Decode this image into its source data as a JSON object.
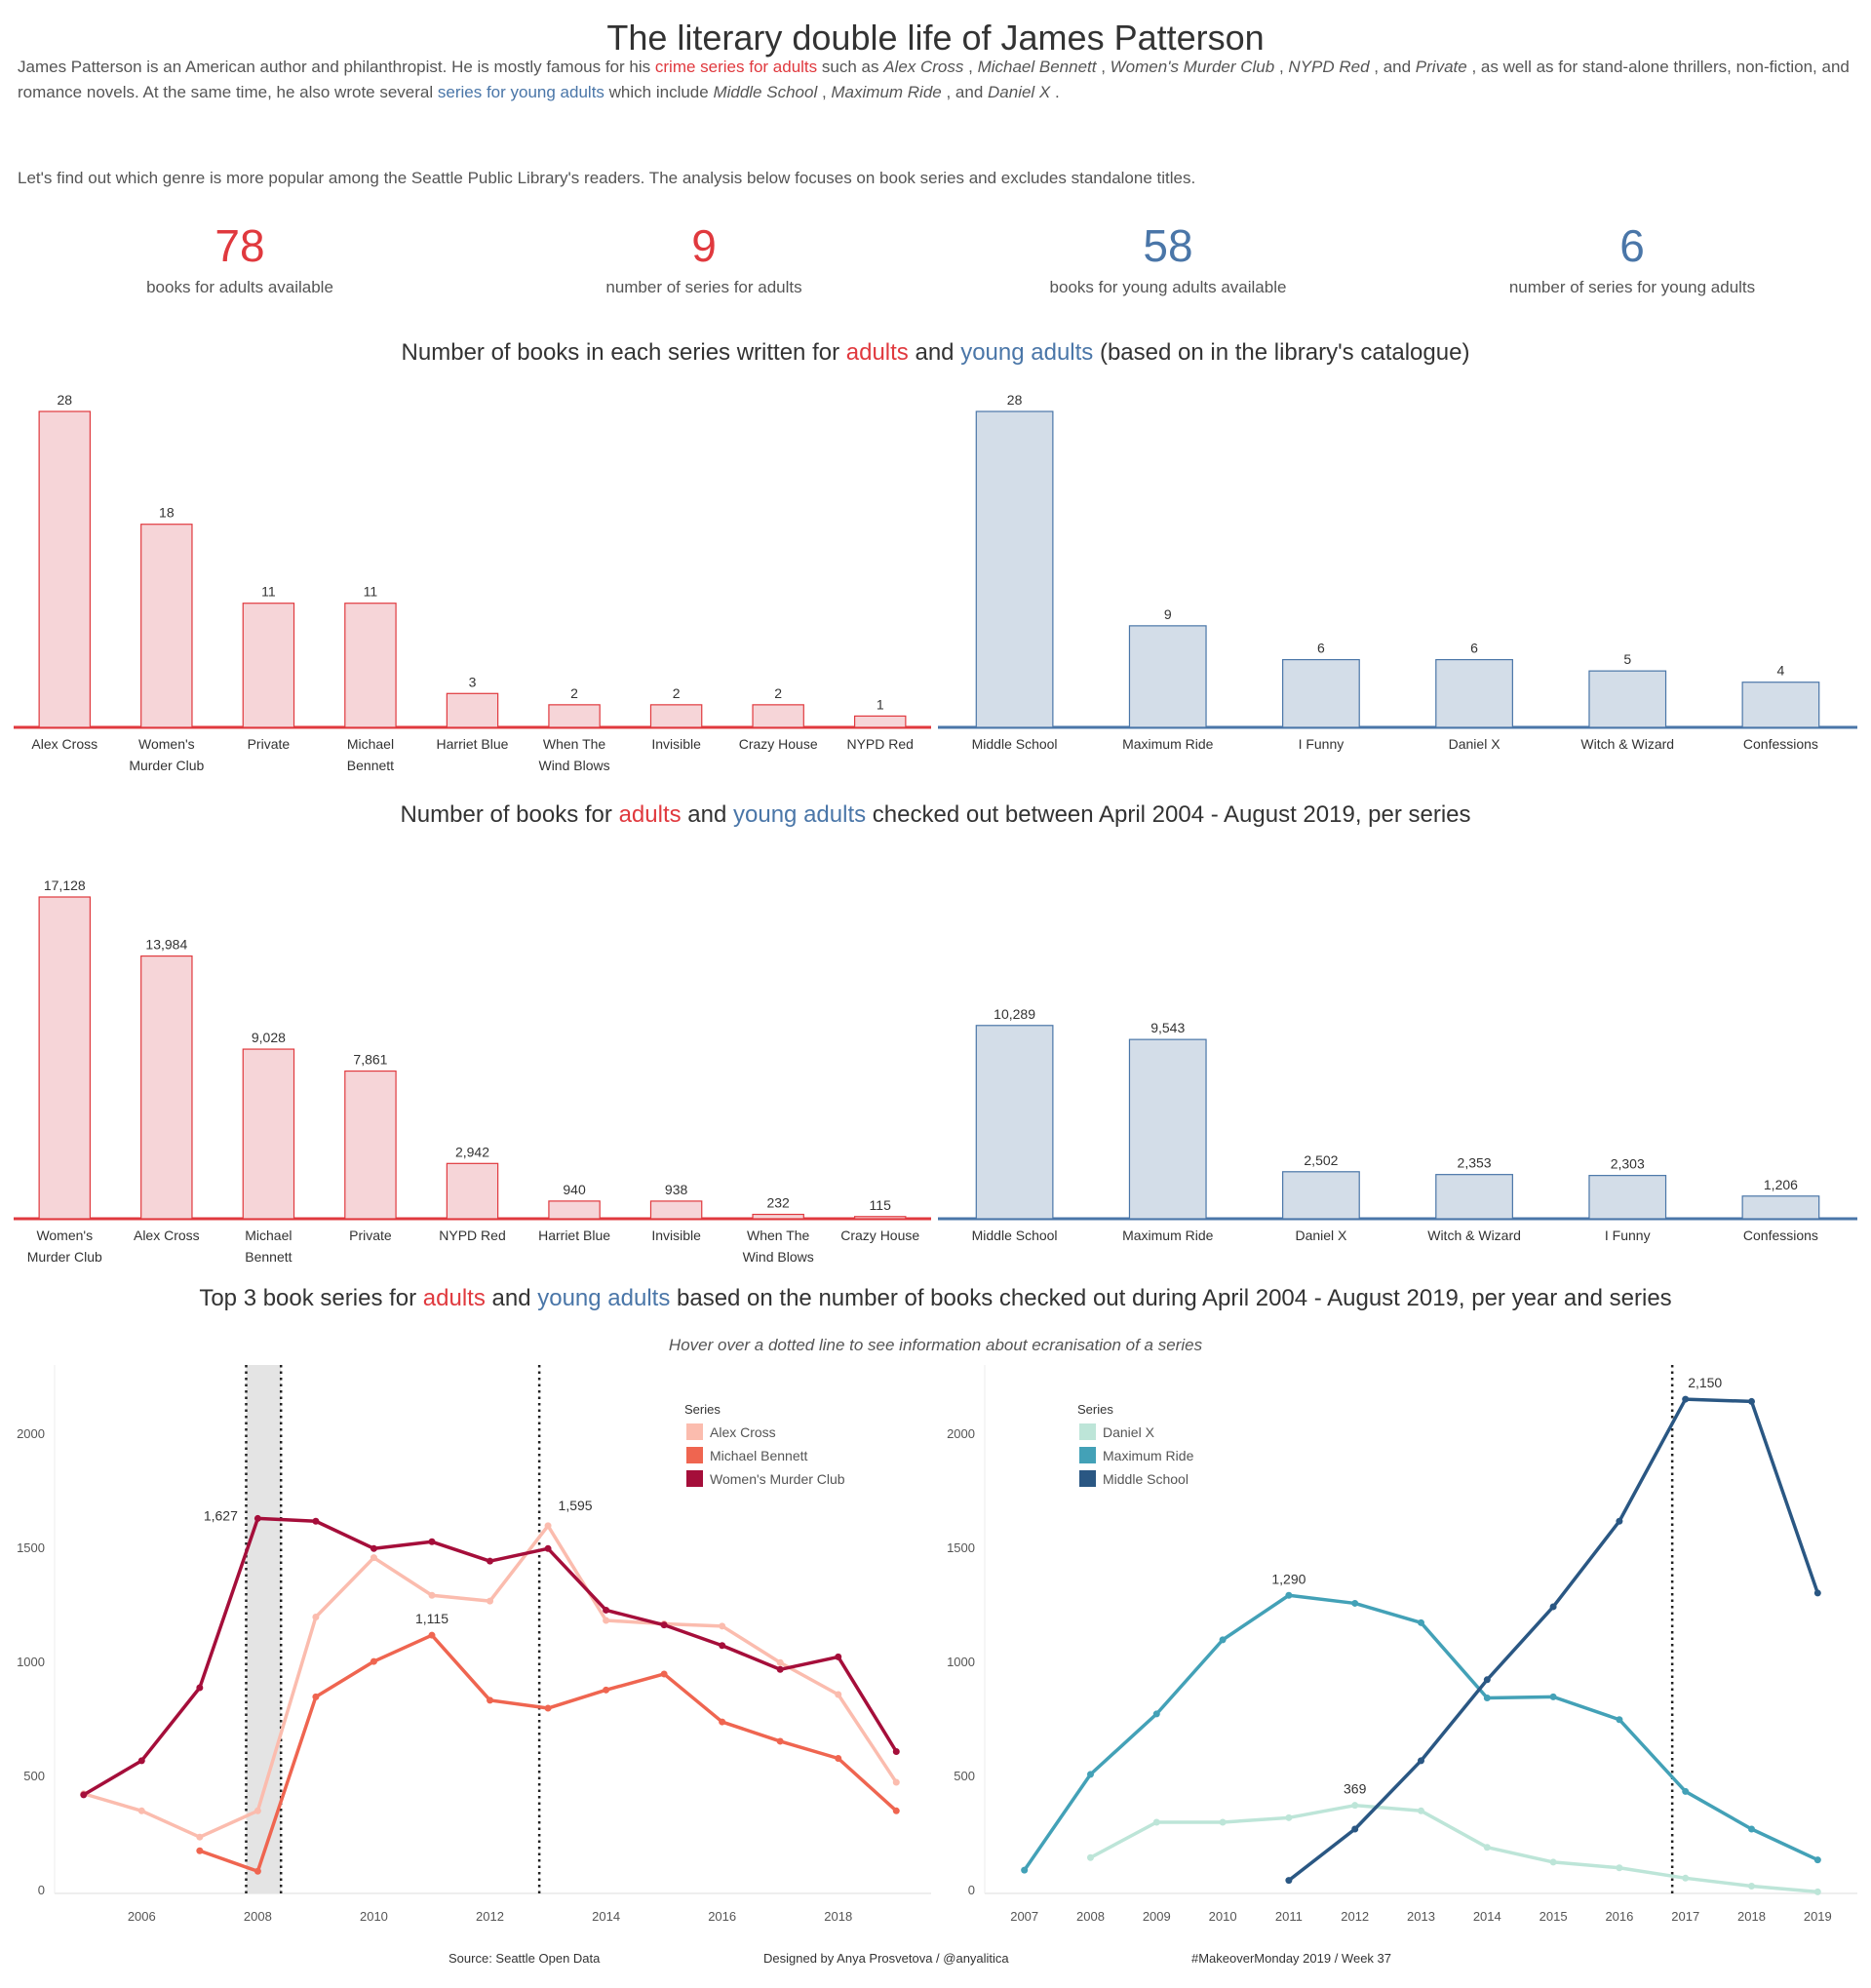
{
  "title": "The literary double life of James Patterson",
  "intro": {
    "p1_a": "James Patterson is an American author and philanthropist. He is mostly famous for his ",
    "p1_red": "crime series for adults",
    "p1_b": " such as ",
    "p1_series_adult": [
      "Alex Cross",
      "Michael Bennett",
      "Women's Murder Club",
      "NYPD Red",
      "Private"
    ],
    "p1_c": ", as well as for stand-alone thrillers, non-fiction, and romance novels. At the same time, he also wrote several ",
    "p1_blue": "series for young adults",
    "p1_d": " which include ",
    "p1_series_ya": [
      "Middle School",
      "Maximum Ride",
      "Daniel X"
    ],
    "p2": "Let's find out which genre is more popular among the Seattle Public Library's readers. The analysis below focuses on book series and excludes standalone titles."
  },
  "kpis": [
    {
      "value": "78",
      "label": "books for adults available",
      "color": "#e0393e"
    },
    {
      "value": "9",
      "label": "number of series for adults",
      "color": "#e0393e"
    },
    {
      "value": "58",
      "label": "books for young adults available",
      "color": "#4a76a8"
    },
    {
      "value": "6",
      "label": "number of series for young adults",
      "color": "#4a76a8"
    }
  ],
  "colors": {
    "adult": "#e0393e",
    "adult_fill": "#f6d5d8",
    "ya": "#4a76a8",
    "ya_fill": "#d3dde8"
  },
  "section1": {
    "pre": "Number of books in each series written for ",
    "adults": "adults",
    "and": " and ",
    "ya": "young adults",
    "post": " (based on in the library's catalogue)"
  },
  "section2": {
    "pre": "Number of books for ",
    "adults": "adults",
    "and": " and ",
    "ya": "young adults",
    "post": " checked out between April 2004 - August 2019, per series"
  },
  "section3": {
    "pre": "Top 3 book series for ",
    "adults": "adults",
    "and": " and ",
    "ya": "young adults",
    "post": " based on the number of books checked out during April 2004 - August 2019, per year and series",
    "subtitle": "Hover over a dotted line to see information about ecranisation of a series"
  },
  "footer": {
    "source": "Source: Seattle Open Data",
    "designer": "Designed by Anya Prosvetova / @anyalitica",
    "tag": "#MakeoverMonday 2019 / Week 37"
  },
  "chart_data": [
    {
      "id": "books-adults",
      "type": "bar",
      "title": "Number of books in each series (adults)",
      "categories": [
        "Alex Cross",
        "Women's Murder Club",
        "Private",
        "Michael Bennett",
        "Harriet Blue",
        "When The Wind Blows",
        "Invisible",
        "Crazy House",
        "NYPD Red"
      ],
      "values": [
        28,
        18,
        11,
        11,
        3,
        2,
        2,
        2,
        1
      ],
      "labels": [
        "28",
        "18",
        "11",
        "11",
        "3",
        "2",
        "2",
        "2",
        "1"
      ],
      "ylim": [
        0,
        28
      ]
    },
    {
      "id": "books-ya",
      "type": "bar",
      "title": "Number of books in each series (young adults)",
      "categories": [
        "Middle School",
        "Maximum Ride",
        "I Funny",
        "Daniel X",
        "Witch & Wizard",
        "Confessions"
      ],
      "values": [
        28,
        9,
        6,
        6,
        5,
        4
      ],
      "labels": [
        "28",
        "9",
        "6",
        "6",
        "5",
        "4"
      ],
      "ylim": [
        0,
        28
      ]
    },
    {
      "id": "checkouts-adults",
      "type": "bar",
      "title": "Checkouts per series (adults)",
      "categories": [
        "Women's Murder Club",
        "Alex Cross",
        "Michael Bennett",
        "Private",
        "NYPD Red",
        "Harriet Blue",
        "Invisible",
        "When The Wind Blows",
        "Crazy House"
      ],
      "values": [
        17128,
        13984,
        9028,
        7861,
        2942,
        940,
        938,
        232,
        115
      ],
      "labels": [
        "17,128",
        "13,984",
        "9,028",
        "7,861",
        "2,942",
        "940",
        "938",
        "232",
        "115"
      ],
      "ylim": [
        0,
        17128
      ]
    },
    {
      "id": "checkouts-ya",
      "type": "bar",
      "title": "Checkouts per series (young adults)",
      "categories": [
        "Middle School",
        "Maximum Ride",
        "Daniel X",
        "Witch & Wizard",
        "I Funny",
        "Confessions"
      ],
      "values": [
        10289,
        9543,
        2502,
        2353,
        2303,
        1206
      ],
      "labels": [
        "10,289",
        "9,543",
        "2,502",
        "2,353",
        "2,303",
        "1,206"
      ],
      "ylim": [
        0,
        17128
      ]
    },
    {
      "id": "yearly-adults",
      "type": "line",
      "title": "Top 3 adult series checkouts per year",
      "legend_title": "Series",
      "legend": "top-right",
      "xlim": [
        2004.5,
        2019.6
      ],
      "ylim": [
        0,
        2300
      ],
      "xticks": [
        2006,
        2008,
        2010,
        2012,
        2014,
        2016,
        2018
      ],
      "yticks": [
        0,
        500,
        1000,
        1500,
        2000
      ],
      "band": [
        2007.8,
        2008.4
      ],
      "dotted_lines": [
        2007.8,
        2008.4,
        2012.85
      ],
      "series": [
        {
          "name": "Alex Cross",
          "color": "#fbbcae",
          "x": [
            2005,
            2006,
            2007,
            2008,
            2009,
            2010,
            2011,
            2012,
            2013,
            2014,
            2015,
            2016,
            2017,
            2018,
            2019
          ],
          "y": [
            420,
            345,
            230,
            345,
            1195,
            1455,
            1290,
            1265,
            1595,
            1180,
            1165,
            1155,
            995,
            855,
            470
          ],
          "annotations": [
            {
              "x": 2013,
              "text": "1,595"
            }
          ]
        },
        {
          "name": "Michael Bennett",
          "color": "#ef6550",
          "x": [
            2007,
            2008,
            2009,
            2010,
            2011,
            2012,
            2013,
            2014,
            2015,
            2016,
            2017,
            2018,
            2019
          ],
          "y": [
            170,
            80,
            845,
            1000,
            1115,
            830,
            795,
            875,
            945,
            735,
            650,
            575,
            345
          ],
          "annotations": [
            {
              "x": 2011,
              "text": "1,115"
            }
          ]
        },
        {
          "name": "Women's Murder Club",
          "color": "#a50e3a",
          "x": [
            2005,
            2006,
            2007,
            2008,
            2009,
            2010,
            2011,
            2012,
            2013,
            2014,
            2015,
            2016,
            2017,
            2018,
            2019
          ],
          "y": [
            415,
            565,
            885,
            1627,
            1615,
            1495,
            1525,
            1440,
            1495,
            1225,
            1160,
            1070,
            965,
            1020,
            605
          ],
          "annotations": [
            {
              "x": 2008,
              "text": "1,627"
            }
          ]
        }
      ]
    },
    {
      "id": "yearly-ya",
      "type": "line",
      "title": "Top 3 young adult series checkouts per year",
      "legend_title": "Series",
      "legend": "top-left",
      "xlim": [
        2006.4,
        2019.6
      ],
      "ylim": [
        0,
        2300
      ],
      "xticks": [
        2007,
        2008,
        2009,
        2010,
        2011,
        2012,
        2013,
        2014,
        2015,
        2016,
        2017,
        2018,
        2019
      ],
      "yticks": [
        0,
        500,
        1000,
        1500,
        2000
      ],
      "dotted_lines": [
        2016.8
      ],
      "series": [
        {
          "name": "Daniel X",
          "color": "#bde5d8",
          "x": [
            2008,
            2009,
            2010,
            2011,
            2012,
            2013,
            2014,
            2015,
            2016,
            2017,
            2018,
            2019
          ],
          "y": [
            140,
            295,
            295,
            315,
            369,
            345,
            185,
            120,
            95,
            50,
            15,
            -10
          ],
          "annotations": [
            {
              "x": 2012,
              "text": "369"
            }
          ]
        },
        {
          "name": "Maximum Ride",
          "color": "#43a1b7",
          "x": [
            2007,
            2008,
            2009,
            2010,
            2011,
            2012,
            2013,
            2014,
            2015,
            2016,
            2017,
            2018,
            2019
          ],
          "y": [
            85,
            505,
            770,
            1095,
            1290,
            1255,
            1170,
            840,
            845,
            745,
            430,
            265,
            130
          ],
          "annotations": [
            {
              "x": 2011,
              "text": "1,290"
            }
          ]
        },
        {
          "name": "Middle School",
          "color": "#2a5783",
          "x": [
            2011,
            2012,
            2013,
            2014,
            2015,
            2016,
            2017,
            2018,
            2019
          ],
          "y": [
            40,
            265,
            565,
            920,
            1240,
            1615,
            2150,
            2140,
            1300
          ],
          "annotations": [
            {
              "x": 2017,
              "text": "2,150"
            }
          ]
        }
      ]
    }
  ]
}
